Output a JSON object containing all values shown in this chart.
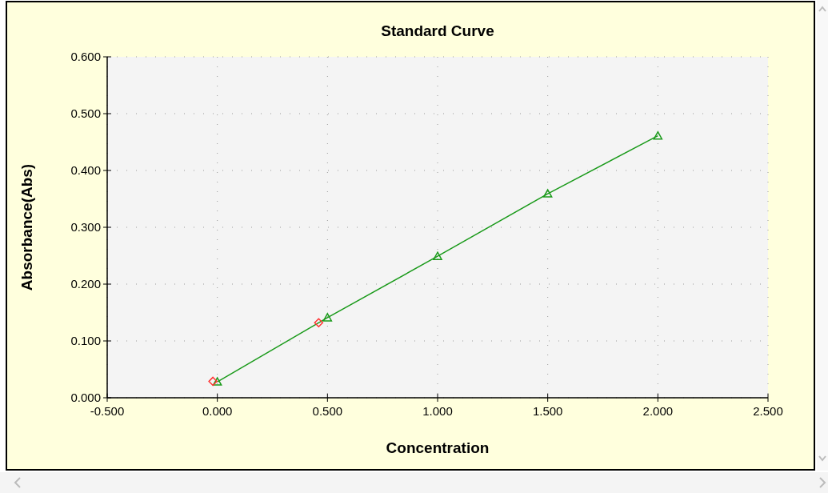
{
  "chart_data": {
    "type": "line",
    "title": "Standard Curve",
    "xlabel": "Concentration",
    "ylabel": "Absorbance(Abs)",
    "xlim": [
      -0.5,
      2.5
    ],
    "xticks": [
      {
        "value": -0.5,
        "label": "-0.500"
      },
      {
        "value": 0,
        "label": "0.000"
      },
      {
        "value": 0.5,
        "label": "0.500"
      },
      {
        "value": 1,
        "label": "1.000"
      },
      {
        "value": 1.5,
        "label": "1.500"
      },
      {
        "value": 2,
        "label": "2.000"
      },
      {
        "value": 2.5,
        "label": "2.500"
      }
    ],
    "ylim": [
      0,
      0.6
    ],
    "yticks": [
      {
        "value": 0,
        "label": "0.000"
      },
      {
        "value": 0.1,
        "label": "0.100"
      },
      {
        "value": 0.2,
        "label": "0.200"
      },
      {
        "value": 0.3,
        "label": "0.300"
      },
      {
        "value": 0.4,
        "label": "0.400"
      },
      {
        "value": 0.5,
        "label": "0.500"
      },
      {
        "value": 0.6,
        "label": "0.600"
      }
    ],
    "grid": true,
    "line_style": "solid",
    "series": [
      {
        "color": "#1a9a1a",
        "marker": "triangle",
        "x": [
          0,
          0.5,
          1,
          1.5,
          2
        ],
        "values": [
          0.028,
          0.141,
          0.249,
          0.359,
          0.461
        ]
      },
      {
        "type": "scatter",
        "color": "#ff3030",
        "marker": "diamond",
        "x": [
          -0.02,
          0.46
        ],
        "values": [
          0.029,
          0.132
        ]
      }
    ]
  }
}
